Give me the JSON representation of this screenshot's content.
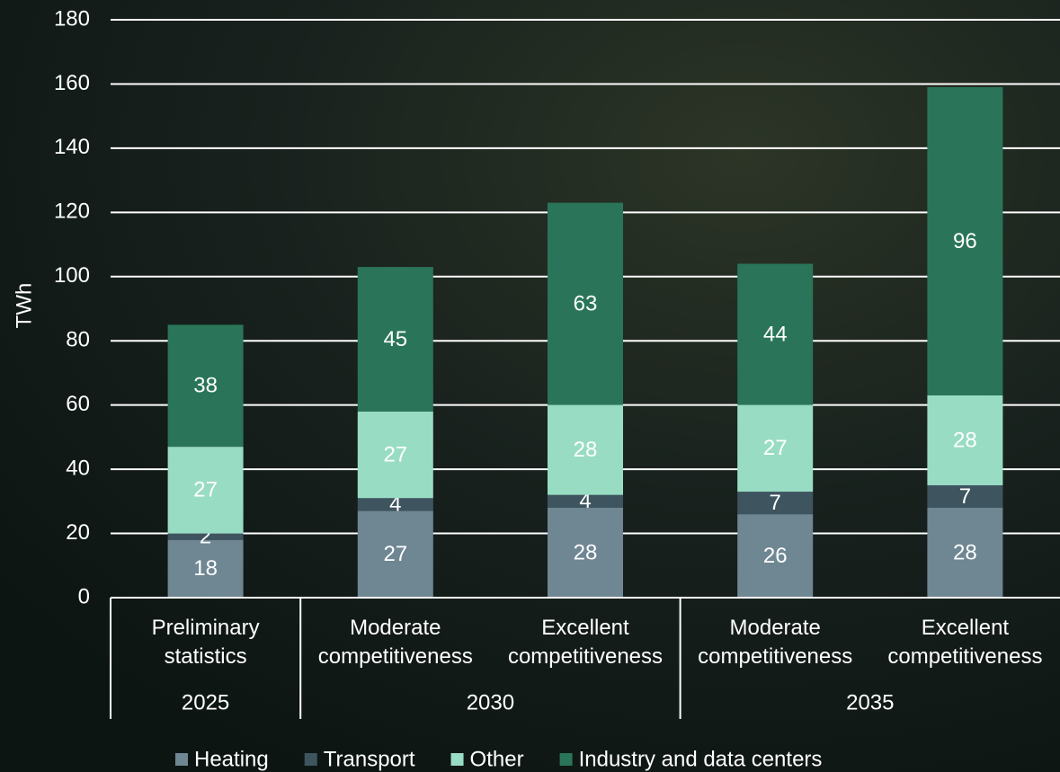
{
  "chart_data": {
    "type": "stacked_bar",
    "y_label": "TWh",
    "groups": [
      {
        "label": "2025",
        "categories": [
          "Preliminary statistics"
        ]
      },
      {
        "label": "2030",
        "categories": [
          "Moderate competitiveness",
          "Excellent competitiveness"
        ]
      },
      {
        "label": "2035",
        "categories": [
          "Moderate competitiveness",
          "Excellent competitiveness"
        ]
      }
    ],
    "series": [
      {
        "name": "Heating",
        "color": "#6f8693",
        "label_color": "#ffffff",
        "values": [
          18,
          27,
          28,
          26,
          28
        ]
      },
      {
        "name": "Transport",
        "color": "#3e5560",
        "label_color": "#ffffff",
        "values": [
          2,
          4,
          4,
          7,
          7
        ]
      },
      {
        "name": "Other",
        "color": "#99dcc4",
        "label_color": "#4a5b61",
        "values": [
          27,
          27,
          28,
          27,
          28
        ]
      },
      {
        "name": "Industry and data centers",
        "color": "#2a7559",
        "label_color": "#ffffff",
        "values": [
          38,
          45,
          63,
          44,
          96
        ]
      }
    ],
    "ylim": [
      0,
      180
    ],
    "yticks": [
      0,
      20,
      40,
      60,
      80,
      100,
      120,
      140,
      160,
      180
    ],
    "grid": true
  }
}
